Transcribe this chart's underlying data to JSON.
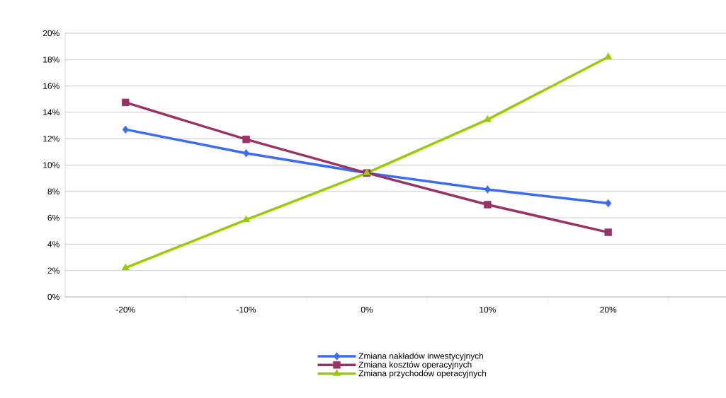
{
  "chart_data": {
    "type": "line",
    "categories": [
      "-20%",
      "-10%",
      "0%",
      "10%",
      "20%"
    ],
    "series": [
      {
        "name": "Zmiana nakładów inwestycyjnych",
        "color": "#3a6cf4",
        "marker": "diamond",
        "values": [
          12.7,
          10.9,
          9.4,
          8.15,
          7.1
        ]
      },
      {
        "name": "Zmiana kosztów operacyjnych",
        "color": "#993366",
        "marker": "square",
        "values": [
          14.75,
          11.95,
          9.4,
          7.0,
          4.9
        ]
      },
      {
        "name": "Zmiana przychodów operacyjnych",
        "color": "#99cc00",
        "marker": "triangle",
        "values": [
          2.2,
          5.85,
          9.4,
          13.45,
          18.2
        ]
      }
    ],
    "ylim": [
      0,
      20
    ],
    "yticks": [
      {
        "value": 0,
        "label": "0%"
      },
      {
        "value": 2,
        "label": "2%"
      },
      {
        "value": 4,
        "label": "4%"
      },
      {
        "value": 6,
        "label": "6%"
      },
      {
        "value": 8,
        "label": "8%"
      },
      {
        "value": 10,
        "label": "10%"
      },
      {
        "value": 12,
        "label": "12%"
      },
      {
        "value": 14,
        "label": "14%"
      },
      {
        "value": 16,
        "label": "16%"
      },
      {
        "value": 18,
        "label": "18%"
      },
      {
        "value": 20,
        "label": "20%"
      }
    ],
    "grid": "y",
    "legend": "bottom",
    "line_style": "solid"
  }
}
